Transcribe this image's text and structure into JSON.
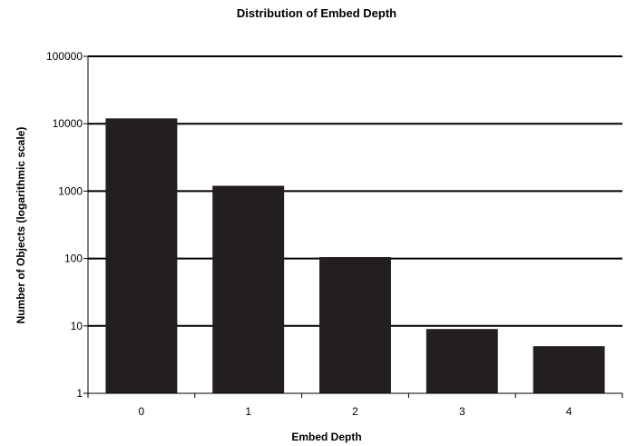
{
  "chart_data": {
    "type": "bar",
    "title": "Distribution of Embed Depth",
    "xlabel": "Embed Depth",
    "ylabel": "Number of Objects (logarithmic scale)",
    "categories": [
      "0",
      "1",
      "2",
      "3",
      "4"
    ],
    "values": [
      12000,
      1200,
      105,
      9,
      5
    ],
    "y_scale": "log",
    "ylim": [
      1,
      100000
    ],
    "y_ticks": [
      "1",
      "10",
      "100",
      "1000",
      "10000",
      "100000"
    ],
    "grid": true,
    "bar_color": "#231f20"
  }
}
